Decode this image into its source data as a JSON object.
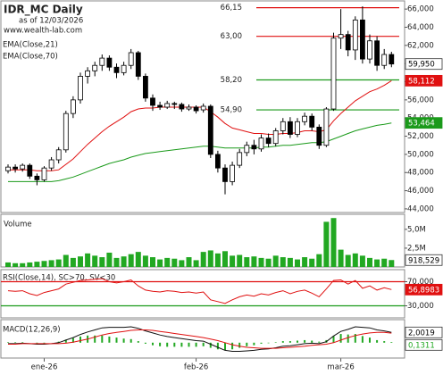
{
  "chart_data": [
    {
      "type": "candlestick",
      "title": "IDR_MC Daily",
      "subtitle": "as of 12/03/2026",
      "source": "www.wealth-lab.com",
      "categories": [
        null,
        null,
        null,
        null,
        null,
        "ene-26",
        null,
        null,
        null,
        null,
        null,
        null,
        null,
        null,
        null,
        null,
        null,
        null,
        null,
        null,
        null,
        null,
        null,
        null,
        null,
        null,
        "feb-26",
        null,
        null,
        null,
        null,
        null,
        null,
        null,
        null,
        null,
        null,
        null,
        null,
        null,
        null,
        null,
        null,
        null,
        null,
        null,
        "mar-26",
        null,
        null,
        null,
        null,
        null,
        null,
        null
      ],
      "open": [
        48.2,
        48.6,
        48.4,
        48.8,
        47.6,
        47.2,
        48.5,
        49.4,
        50.5,
        54.5,
        56.0,
        58.6,
        59.2,
        59.8,
        60.6,
        59.6,
        59.0,
        59.8,
        61.2,
        58.6,
        56.2,
        55.4,
        55.2,
        55.6,
        55.5,
        55.0,
        55.2,
        54.9,
        55.3,
        50.0,
        48.5,
        47.0,
        48.8,
        50.2,
        51.0,
        50.6,
        51.8,
        51.2,
        52.6,
        53.6,
        52.2,
        53.6,
        54.2,
        53.0,
        51.0,
        55.0,
        62.8,
        63.2,
        61.5,
        64.8,
        60.5,
        62.5,
        59.8,
        61.0
      ],
      "high": [
        48.9,
        48.9,
        49.0,
        49.0,
        47.9,
        48.7,
        49.7,
        50.8,
        54.8,
        56.4,
        59.0,
        59.6,
        60.2,
        61.0,
        60.9,
        60.0,
        60.2,
        61.6,
        61.4,
        58.9,
        56.6,
        55.8,
        55.9,
        55.8,
        55.7,
        55.5,
        55.4,
        55.6,
        55.5,
        50.4,
        48.9,
        49.2,
        50.6,
        51.4,
        51.6,
        52.2,
        52.3,
        52.9,
        54.0,
        54.1,
        54.0,
        54.6,
        54.5,
        53.3,
        55.2,
        63.4,
        66.0,
        63.6,
        65.2,
        66.3,
        63.2,
        63.0,
        61.6,
        61.3
      ],
      "low": [
        47.9,
        48.0,
        48.1,
        47.3,
        46.6,
        47.0,
        48.2,
        49.0,
        50.2,
        54.0,
        55.6,
        57.8,
        58.6,
        59.2,
        59.2,
        58.4,
        58.7,
        59.4,
        58.2,
        55.8,
        54.8,
        54.9,
        55.0,
        55.0,
        54.7,
        54.8,
        54.5,
        54.6,
        49.6,
        48.0,
        45.6,
        46.6,
        48.5,
        49.8,
        50.0,
        50.3,
        50.8,
        50.9,
        52.2,
        51.8,
        51.9,
        53.2,
        52.6,
        50.6,
        50.8,
        54.8,
        61.6,
        60.8,
        60.4,
        60.0,
        60.0,
        59.2,
        59.4,
        59.6
      ],
      "close": [
        48.6,
        48.4,
        48.8,
        47.6,
        47.2,
        48.5,
        49.4,
        50.5,
        54.5,
        56.0,
        58.6,
        59.2,
        59.8,
        60.6,
        59.6,
        59.0,
        59.8,
        61.2,
        58.6,
        56.2,
        55.4,
        55.2,
        55.6,
        55.5,
        55.0,
        55.2,
        54.8,
        55.3,
        50.0,
        48.5,
        47.0,
        48.8,
        50.2,
        51.0,
        50.6,
        51.8,
        51.2,
        52.6,
        53.6,
        52.2,
        53.6,
        54.2,
        53.0,
        51.0,
        55.0,
        62.8,
        63.2,
        61.5,
        64.8,
        60.5,
        62.5,
        59.8,
        61.0,
        59.95
      ],
      "close_label": "59,950",
      "series": [
        {
          "name": "EMA(Close,21)",
          "color": "#e01010",
          "last_label": "58,112",
          "values": [
            48.3,
            48.3,
            48.3,
            48.3,
            48.2,
            48.2,
            48.2,
            48.3,
            48.9,
            49.5,
            50.3,
            51.1,
            51.8,
            52.5,
            53.1,
            53.6,
            54.1,
            54.7,
            55.0,
            55.1,
            55.1,
            55.2,
            55.2,
            55.2,
            55.2,
            55.2,
            55.2,
            55.2,
            54.7,
            54.1,
            53.4,
            52.9,
            52.7,
            52.5,
            52.3,
            52.3,
            52.2,
            52.2,
            52.3,
            52.3,
            52.4,
            52.6,
            52.6,
            52.5,
            52.7,
            53.7,
            54.5,
            55.2,
            55.9,
            56.4,
            56.9,
            57.2,
            57.6,
            58.112
          ]
        },
        {
          "name": "EMA(Close,70)",
          "color": "#1a9a1a",
          "last_label": "53,464",
          "values": [
            47.0,
            47.0,
            47.0,
            47.0,
            47.0,
            47.0,
            47.0,
            47.1,
            47.3,
            47.5,
            47.8,
            48.1,
            48.4,
            48.7,
            49.0,
            49.2,
            49.4,
            49.7,
            49.9,
            50.1,
            50.2,
            50.3,
            50.4,
            50.5,
            50.6,
            50.7,
            50.8,
            50.9,
            50.9,
            50.8,
            50.7,
            50.7,
            50.7,
            50.7,
            50.7,
            50.8,
            50.8,
            50.9,
            51.0,
            51.0,
            51.1,
            51.2,
            51.3,
            51.3,
            51.4,
            51.7,
            52.0,
            52.3,
            52.6,
            52.8,
            53.0,
            53.2,
            53.3,
            53.464
          ]
        }
      ],
      "levels": [
        {
          "value": 66.15,
          "label": "66,15",
          "color": "#e01010"
        },
        {
          "value": 63.0,
          "label": "63,00",
          "color": "#e01010"
        },
        {
          "value": 58.2,
          "label": "58,20",
          "color": "#1a9a1a"
        },
        {
          "value": 54.9,
          "label": "54,90",
          "color": "#1a9a1a"
        }
      ],
      "ylim": [
        43.6,
        66.9
      ],
      "yticks": [
        {
          "value": 44,
          "label": "44,000"
        },
        {
          "value": 46,
          "label": "46,000"
        },
        {
          "value": 48,
          "label": "48,000"
        },
        {
          "value": 50,
          "label": "50,000"
        },
        {
          "value": 52,
          "label": "52,000"
        },
        {
          "value": 54,
          "label": "54,000"
        },
        {
          "value": 56,
          "label": "56,000"
        },
        {
          "value": 58,
          "label": "58,000"
        },
        {
          "value": 60,
          "label": "60,000"
        },
        {
          "value": 62,
          "label": "62,000"
        },
        {
          "value": 64,
          "label": "64,000"
        },
        {
          "value": 66,
          "label": "66,000"
        }
      ]
    },
    {
      "type": "bar",
      "title": "Volume",
      "color": "#22a822",
      "last_label": "918,529",
      "values": [
        600000,
        500000,
        500000,
        600000,
        700000,
        800000,
        900000,
        1000000,
        1600000,
        1200000,
        1400000,
        1800000,
        1500000,
        1300000,
        1900000,
        1200000,
        1400000,
        1700000,
        2000000,
        1500000,
        1300000,
        1000000,
        1200000,
        1100000,
        900000,
        1300000,
        900000,
        2000000,
        2200000,
        1800000,
        2100000,
        1500000,
        1600000,
        1300000,
        1400000,
        1200000,
        1100000,
        1500000,
        1300000,
        1200000,
        1000000,
        1300000,
        1100000,
        1700000,
        6000000,
        6500000,
        2300000,
        1600000,
        1800000,
        1500000,
        1200000,
        1000000,
        1100000,
        918529
      ],
      "ylim": [
        0,
        7000000
      ],
      "yticks": [
        {
          "value": 2500000,
          "label": "2,5M"
        },
        {
          "value": 5000000,
          "label": "5,0M"
        }
      ]
    },
    {
      "type": "line",
      "title": "RSI(Close,14), SC>70, SV<30",
      "series": [
        {
          "name": "RSI",
          "color": "#e01010",
          "last_label": "56,8983",
          "values": [
            55,
            54,
            55,
            50,
            47,
            52,
            55,
            58,
            66,
            69,
            72,
            73,
            74,
            75,
            70,
            68,
            70,
            73,
            63,
            56,
            54,
            53,
            55,
            54,
            52,
            53,
            51,
            53,
            40,
            37,
            34,
            40,
            45,
            48,
            46,
            50,
            48,
            52,
            55,
            50,
            54,
            56,
            51,
            45,
            58,
            72,
            73,
            66,
            72,
            59,
            63,
            56,
            60,
            56.8983
          ]
        }
      ],
      "levels": [
        {
          "value": 70,
          "color": "#e01010"
        },
        {
          "value": 30,
          "color": "#1a9a1a"
        }
      ],
      "ylim": [
        10,
        90
      ],
      "yticks": [
        {
          "value": 30,
          "label": "30,000"
        },
        {
          "value": 70,
          "label": "70,000"
        }
      ]
    },
    {
      "type": "macd",
      "title": "MACD(12,26,9)",
      "histogram": {
        "name": "Histogram",
        "color": "#22a822",
        "last_label": "0,1311",
        "values": [
          0.1,
          0.1,
          0.1,
          0.0,
          -0.1,
          -0.1,
          0.0,
          0.2,
          0.6,
          0.9,
          1.2,
          1.4,
          1.4,
          1.4,
          1.2,
          1.0,
          0.8,
          0.7,
          0.3,
          -0.2,
          -0.5,
          -0.7,
          -0.8,
          -0.8,
          -0.8,
          -0.8,
          -0.8,
          -0.7,
          -1.0,
          -1.3,
          -1.5,
          -1.3,
          -1.0,
          -0.7,
          -0.5,
          -0.2,
          -0.1,
          0.1,
          0.3,
          0.3,
          0.4,
          0.5,
          0.4,
          0.2,
          0.5,
          1.3,
          1.7,
          1.6,
          1.7,
          1.3,
          1.0,
          0.5,
          0.3,
          0.1311
        ]
      },
      "series": [
        {
          "name": "MACD",
          "color": "#111111",
          "last_label": "2,0019",
          "values": [
            -0.2,
            -0.2,
            -0.1,
            -0.2,
            -0.3,
            -0.3,
            -0.2,
            0.0,
            0.5,
            1.0,
            1.6,
            2.1,
            2.5,
            2.9,
            3.0,
            3.0,
            3.0,
            3.1,
            2.8,
            2.3,
            1.9,
            1.5,
            1.2,
            1.0,
            0.8,
            0.6,
            0.4,
            0.3,
            -0.3,
            -0.9,
            -1.5,
            -1.7,
            -1.7,
            -1.6,
            -1.5,
            -1.3,
            -1.2,
            -1.0,
            -0.7,
            -0.6,
            -0.4,
            -0.2,
            -0.1,
            -0.2,
            0.2,
            1.3,
            2.2,
            2.6,
            3.1,
            3.0,
            2.9,
            2.5,
            2.3,
            2.0019
          ]
        },
        {
          "name": "Signal",
          "color": "#e01010",
          "values": [
            -0.3,
            -0.3,
            -0.2,
            -0.2,
            -0.2,
            -0.2,
            -0.2,
            -0.2,
            -0.1,
            0.1,
            0.4,
            0.7,
            1.1,
            1.5,
            1.8,
            2.0,
            2.2,
            2.4,
            2.5,
            2.5,
            2.4,
            2.2,
            2.0,
            1.8,
            1.6,
            1.4,
            1.2,
            1.0,
            0.7,
            0.4,
            0.0,
            -0.4,
            -0.7,
            -0.9,
            -1.0,
            -1.1,
            -1.1,
            -1.1,
            -1.0,
            -0.9,
            -0.8,
            -0.7,
            -0.5,
            -0.4,
            -0.3,
            0.0,
            0.5,
            1.0,
            1.4,
            1.7,
            1.9,
            2.0,
            2.0,
            1.8708
          ]
        }
      ],
      "ylim": [
        -3,
        4.5
      ]
    }
  ]
}
